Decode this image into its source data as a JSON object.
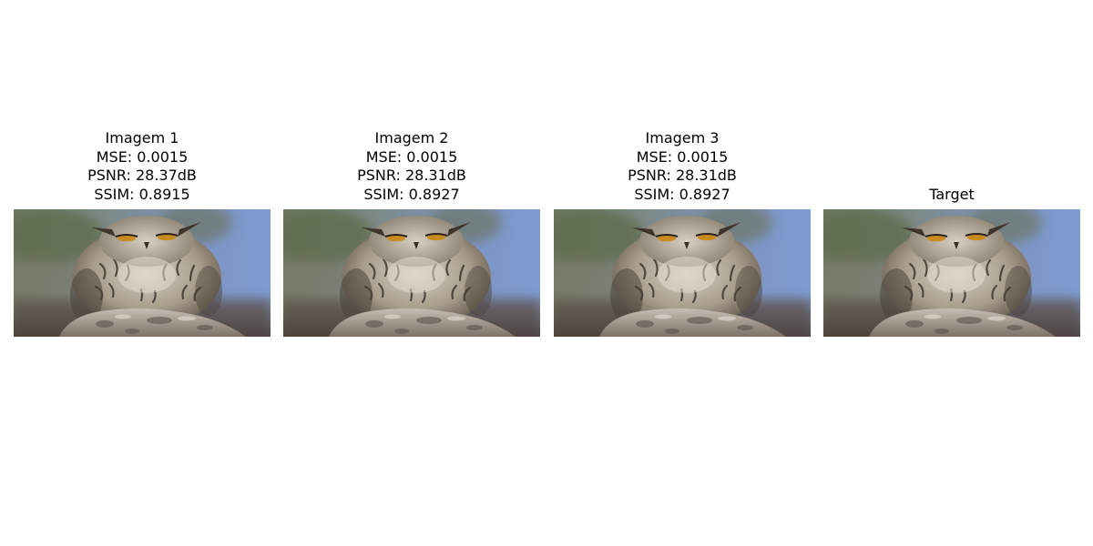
{
  "panels": [
    {
      "title": "Imagem 1",
      "mse": "MSE: 0.0015",
      "psnr": "PSNR: 28.37dB",
      "ssim": "SSIM: 0.8915"
    },
    {
      "title": "Imagem 2",
      "mse": "MSE: 0.0015",
      "psnr": "PSNR: 28.31dB",
      "ssim": "SSIM: 0.8927"
    },
    {
      "title": "Imagem 3",
      "mse": "MSE: 0.0015",
      "psnr": "PSNR: 28.31dB",
      "ssim": "SSIM: 0.8927"
    },
    {
      "title": "Target"
    }
  ],
  "photo_subject": "owl-on-rock",
  "colors": {
    "sky_blue": "#7f9bcf",
    "foliage_green": "#6b7a5a",
    "owl_feather": "#b8ab98",
    "rock": "#a59a8e"
  }
}
